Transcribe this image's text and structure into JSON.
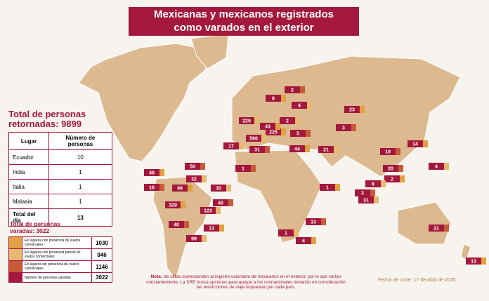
{
  "header": {
    "title": [
      "Mexicanas y mexicanos registrados",
      "como varados en el exterior"
    ]
  },
  "retornadas": {
    "title": [
      "Total de personas",
      "retornadas: 9899"
    ],
    "columns": [
      "Lugar",
      "Número de personas"
    ],
    "rows": [
      [
        "Ecuador",
        "10"
      ],
      [
        "India",
        "1"
      ],
      [
        "Italia",
        "1"
      ],
      [
        "Malasia",
        "1"
      ],
      [
        "Total del día",
        "13"
      ]
    ]
  },
  "varadas": {
    "title": [
      "Total de personas",
      "varadas: 3022"
    ],
    "rows": [
      [
        "En lugares con presencia de vuelos comerciales",
        "1030"
      ],
      [
        "En lugares con presencia parcial de vuelos comerciales",
        "846"
      ],
      [
        "En lugares sin presencia de vuelos comerciales",
        "1146"
      ],
      [
        "Número de personas varadas",
        "3022"
      ]
    ]
  },
  "markers": [
    "8",
    "4",
    "2",
    "23",
    "229",
    "3",
    "225",
    "560",
    "31",
    "43",
    "2",
    "5",
    "44",
    "21",
    "19",
    "14",
    "4",
    "20",
    "2",
    "8",
    "3",
    "1",
    "31",
    "50",
    "48",
    "32",
    "16",
    "99",
    "30",
    "40",
    "329",
    "123",
    "40",
    "13",
    "99",
    "13",
    "4",
    "1",
    "21",
    "13",
    "17",
    "1"
  ],
  "note": {
    "label": "Nota:",
    "lines": [
      "las cifras corresponden al registro voluntario de mexicanos en el exterior, por lo que varían",
      "constantemente. La SRE busca opciones para apoyar a los connacionales tomando en consideración",
      "las restricciones de viaje impuestas por cada país."
    ]
  },
  "date": "Fecha de corte: 17 de abril de 2020"
}
